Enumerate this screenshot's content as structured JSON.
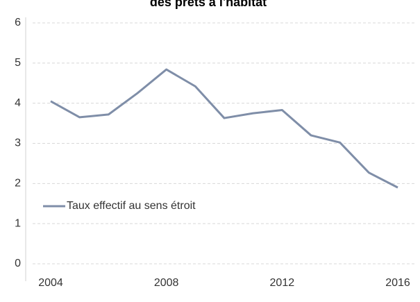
{
  "chart_data": {
    "type": "line",
    "title": "des prêts à l'habitat",
    "x": [
      2004,
      2005,
      2006,
      2007,
      2008,
      2009,
      2010,
      2011,
      2012,
      2013,
      2014,
      2015,
      2016
    ],
    "series": [
      {
        "name": "Taux effectif au sens étroit",
        "color": "#7f8ea8",
        "values": [
          4.05,
          3.65,
          3.72,
          4.25,
          4.84,
          4.42,
          3.63,
          3.75,
          3.83,
          3.2,
          3.02,
          2.27,
          1.9
        ]
      }
    ],
    "xlim": [
      2004,
      2016
    ],
    "xticks": [
      2004,
      2008,
      2012,
      2016
    ],
    "ylim": [
      0,
      6
    ],
    "yticks": [
      0,
      1,
      2,
      3,
      4,
      5,
      6
    ],
    "grid": true,
    "legend": "left"
  }
}
